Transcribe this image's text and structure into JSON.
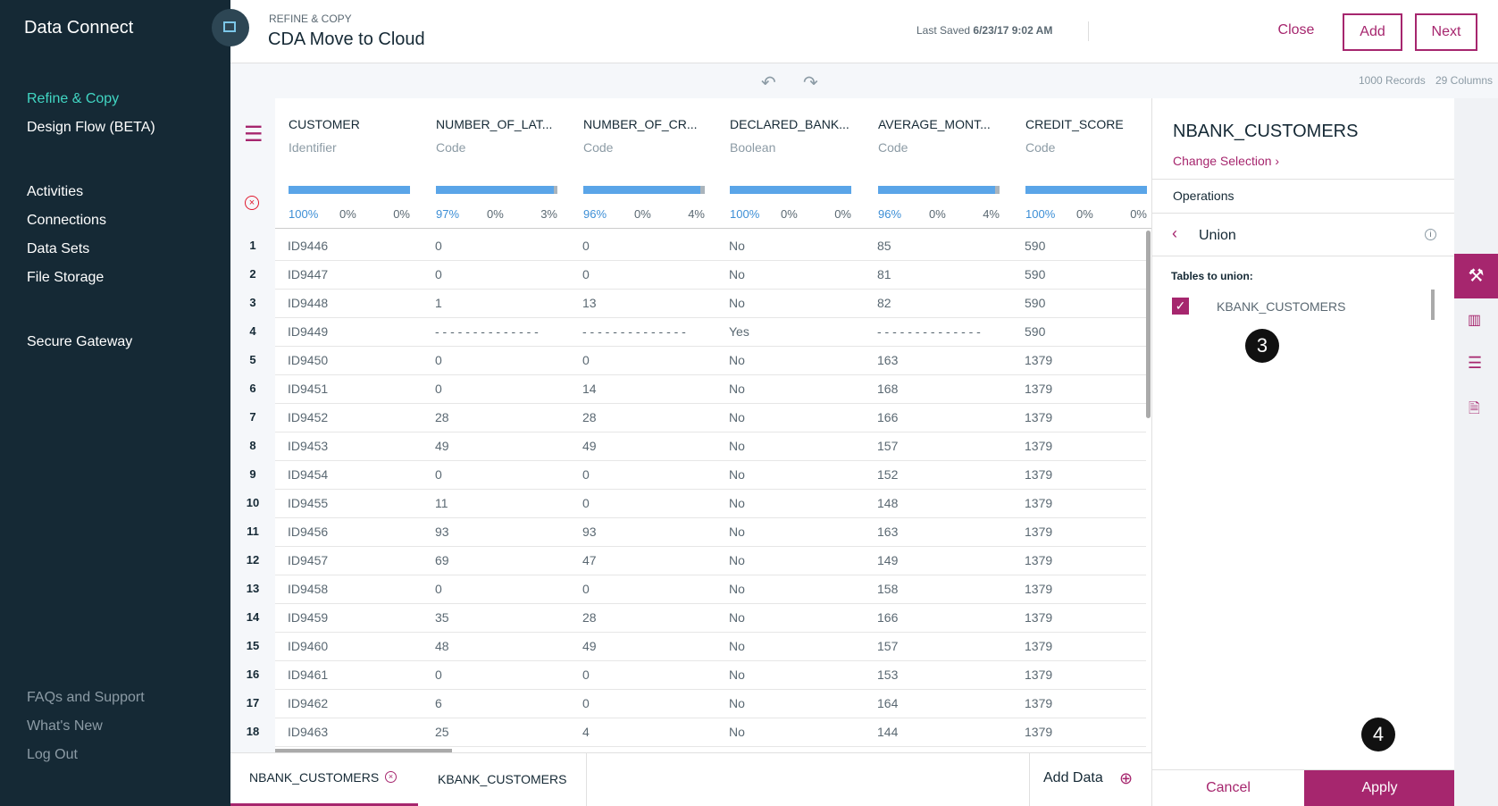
{
  "sidebar": {
    "app_title": "Data Connect",
    "nav_primary": [
      "Refine & Copy",
      "Design Flow (BETA)"
    ],
    "nav_secondary": [
      "Activities",
      "Connections",
      "Data Sets",
      "File Storage"
    ],
    "nav_gateway": "Secure Gateway",
    "footer": [
      "FAQs and Support",
      "What's New",
      "Log Out"
    ]
  },
  "header": {
    "breadcrumb": "REFINE & COPY",
    "title": "CDA Move to Cloud",
    "last_saved_label": "Last Saved",
    "last_saved_value": "6/23/17 9:02 AM",
    "buttons": [
      "Close",
      "Add",
      "Next"
    ]
  },
  "toolbar": {
    "records": "1000 Records",
    "columns": "29 Columns"
  },
  "table": {
    "columns": [
      {
        "name": "CUSTOMER",
        "type": "Identifier",
        "stats": [
          "100%",
          "0%",
          "0%"
        ]
      },
      {
        "name": "NUMBER_OF_LAT...",
        "type": "Code",
        "stats": [
          "97%",
          "0%",
          "3%"
        ]
      },
      {
        "name": "NUMBER_OF_CR...",
        "type": "Code",
        "stats": [
          "96%",
          "0%",
          "4%"
        ]
      },
      {
        "name": "DECLARED_BANK...",
        "type": "Boolean",
        "stats": [
          "100%",
          "0%",
          "0%"
        ]
      },
      {
        "name": "AVERAGE_MONT...",
        "type": "Code",
        "stats": [
          "96%",
          "0%",
          "4%"
        ]
      },
      {
        "name": "CREDIT_SCORE",
        "type": "Code",
        "stats": [
          "100%",
          "0%",
          "0%"
        ]
      }
    ],
    "rows": [
      [
        "1",
        "ID9446",
        "0",
        "0",
        "No",
        "85",
        "590"
      ],
      [
        "2",
        "ID9447",
        "0",
        "0",
        "No",
        "81",
        "590"
      ],
      [
        "3",
        "ID9448",
        "1",
        "13",
        "No",
        "82",
        "590"
      ],
      [
        "4",
        "ID9449",
        "- - - - - - - - - - - - - -",
        "- - - - - - - - - - - - - -",
        "Yes",
        "- - - - - - - - - - - - - -",
        "590"
      ],
      [
        "5",
        "ID9450",
        "0",
        "0",
        "No",
        "163",
        "1379"
      ],
      [
        "6",
        "ID9451",
        "0",
        "14",
        "No",
        "168",
        "1379"
      ],
      [
        "7",
        "ID9452",
        "28",
        "28",
        "No",
        "166",
        "1379"
      ],
      [
        "8",
        "ID9453",
        "49",
        "49",
        "No",
        "157",
        "1379"
      ],
      [
        "9",
        "ID9454",
        "0",
        "0",
        "No",
        "152",
        "1379"
      ],
      [
        "10",
        "ID9455",
        "11",
        "0",
        "No",
        "148",
        "1379"
      ],
      [
        "11",
        "ID9456",
        "93",
        "93",
        "No",
        "163",
        "1379"
      ],
      [
        "12",
        "ID9457",
        "69",
        "47",
        "No",
        "149",
        "1379"
      ],
      [
        "13",
        "ID9458",
        "0",
        "0",
        "No",
        "158",
        "1379"
      ],
      [
        "14",
        "ID9459",
        "35",
        "28",
        "No",
        "166",
        "1379"
      ],
      [
        "15",
        "ID9460",
        "48",
        "49",
        "No",
        "157",
        "1379"
      ],
      [
        "16",
        "ID9461",
        "0",
        "0",
        "No",
        "153",
        "1379"
      ],
      [
        "17",
        "ID9462",
        "6",
        "0",
        "No",
        "164",
        "1379"
      ],
      [
        "18",
        "ID9463",
        "25",
        "4",
        "No",
        "144",
        "1379"
      ]
    ]
  },
  "tabs": {
    "items": [
      "NBANK_CUSTOMERS",
      "KBANK_CUSTOMERS"
    ],
    "add": "Add Data"
  },
  "panel": {
    "title": "NBANK_CUSTOMERS",
    "change": "Change Selection",
    "operations": "Operations",
    "operation": "Union",
    "label": "Tables to union:",
    "item": "KBANK_CUSTOMERS",
    "badges": [
      "3",
      "4"
    ],
    "buttons": [
      "Cancel",
      "Apply"
    ]
  }
}
